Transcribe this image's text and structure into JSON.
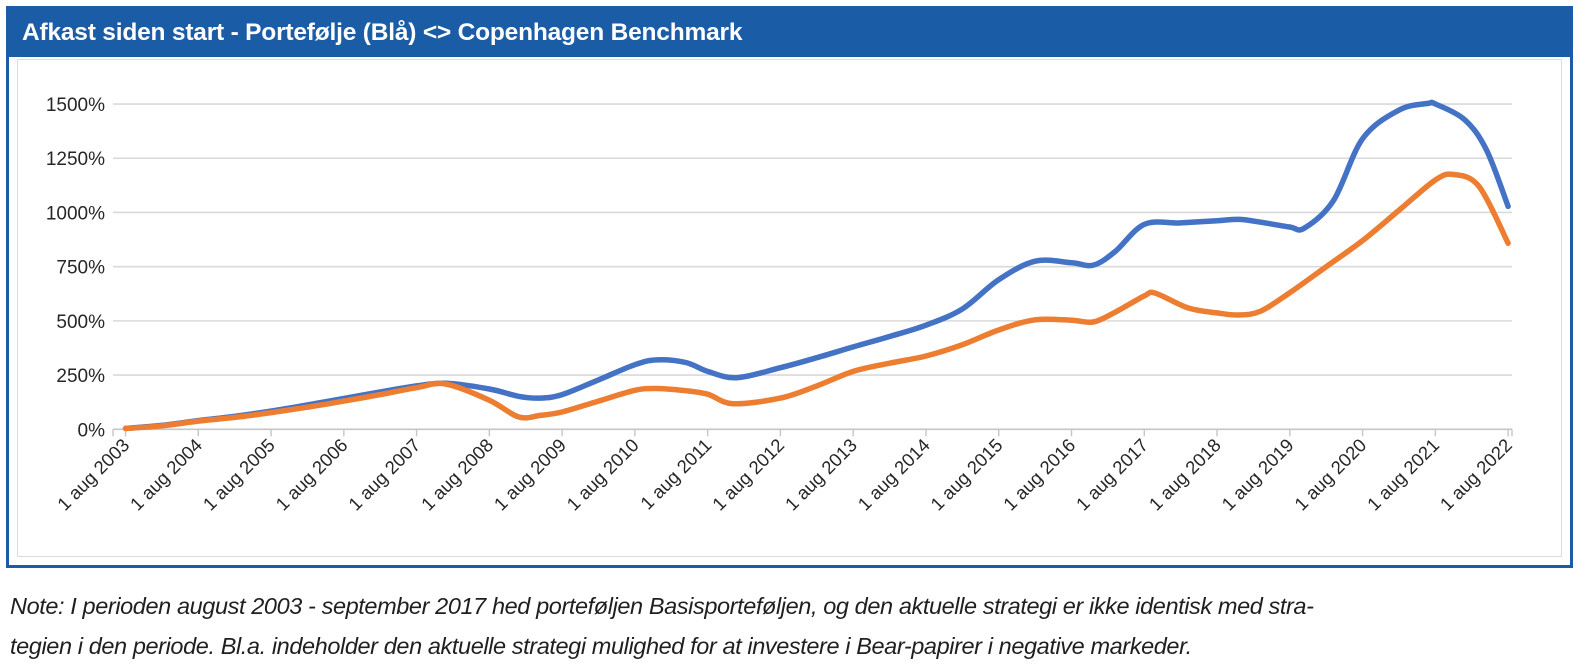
{
  "colors": {
    "brand_blue": "#1B5CA7",
    "series_portfolio": "#4472C4",
    "series_benchmark": "#ED7D31",
    "gridline": "#D9D9D9",
    "axis": "#C6C6C6",
    "text": "#262626"
  },
  "note": {
    "line1": "Note: I perioden august 2003 - september 2017 hed porteføljen Basisporteføljen, og den aktuelle strategi er ikke identisk med stra-",
    "line2": "tegien i den periode. Bl.a. indeholder den aktuelle strategi mulighed for at investere i Bear-papirer i negative markeder."
  },
  "chart_data": {
    "type": "line",
    "title": "Afkast siden start - Portefølje (Blå) <> Copenhagen Benchmark",
    "xlabel": "",
    "ylabel": "",
    "ylim": [
      0,
      1500
    ],
    "grid": true,
    "legend_position": "none",
    "smoothed": true,
    "x_unit": "years since 1 aug 2003",
    "categories": [
      "1 aug 2003",
      "1 aug 2004",
      "1 aug 2005",
      "1 aug 2006",
      "1 aug 2007",
      "1 aug 2008",
      "1 aug 2009",
      "1 aug 2010",
      "1 aug 2011",
      "1 aug 2012",
      "1 aug 2013",
      "1 aug 2014",
      "1 aug 2015",
      "1 aug 2016",
      "1 aug 2017",
      "1 aug 2018",
      "1 aug 2019",
      "1 aug 2020",
      "1 aug 2021",
      "1 aug 2022"
    ],
    "yticks": [
      {
        "value": 0,
        "label": "0%"
      },
      {
        "value": 250,
        "label": "250%"
      },
      {
        "value": 500,
        "label": "500%"
      },
      {
        "value": 750,
        "label": "750%"
      },
      {
        "value": 1000,
        "label": "1000%"
      },
      {
        "value": 1250,
        "label": "1250%"
      },
      {
        "value": 1500,
        "label": "1500%"
      }
    ],
    "series": [
      {
        "name": "Portefølje",
        "color": "#4472C4",
        "annual_values_pct": [
          0,
          40,
          84,
          142,
          200,
          186,
          160,
          298,
          267,
          284,
          380,
          480,
          690,
          768,
          945,
          962,
          933,
          1340,
          1500,
          1028
        ],
        "points": [
          [
            0,
            4
          ],
          [
            0.5,
            18
          ],
          [
            1,
            40
          ],
          [
            1.5,
            60
          ],
          [
            2,
            84
          ],
          [
            2.5,
            112
          ],
          [
            3,
            142
          ],
          [
            3.5,
            172
          ],
          [
            4,
            200
          ],
          [
            4.4,
            212
          ],
          [
            5,
            186
          ],
          [
            5.4,
            152
          ],
          [
            5.7,
            144
          ],
          [
            6,
            160
          ],
          [
            6.5,
            228
          ],
          [
            7,
            298
          ],
          [
            7.3,
            320
          ],
          [
            7.7,
            308
          ],
          [
            8,
            267
          ],
          [
            8.4,
            238
          ],
          [
            9,
            284
          ],
          [
            9.5,
            330
          ],
          [
            10,
            380
          ],
          [
            10.5,
            428
          ],
          [
            11,
            480
          ],
          [
            11.5,
            555
          ],
          [
            12,
            690
          ],
          [
            12.5,
            775
          ],
          [
            13,
            768
          ],
          [
            13.3,
            757
          ],
          [
            13.6,
            820
          ],
          [
            14,
            945
          ],
          [
            14.5,
            952
          ],
          [
            15,
            962
          ],
          [
            15.3,
            968
          ],
          [
            15.6,
            955
          ],
          [
            16,
            933
          ],
          [
            16.2,
            928
          ],
          [
            16.6,
            1055
          ],
          [
            17,
            1340
          ],
          [
            17.5,
            1472
          ],
          [
            17.9,
            1503
          ],
          [
            18,
            1500
          ],
          [
            18.4,
            1428
          ],
          [
            18.7,
            1290
          ],
          [
            19,
            1028
          ]
        ]
      },
      {
        "name": "Copenhagen Benchmark",
        "color": "#ED7D31",
        "annual_values_pct": [
          0,
          38,
          77,
          130,
          192,
          134,
          80,
          180,
          162,
          144,
          267,
          338,
          458,
          503,
          615,
          537,
          630,
          870,
          1150,
          858
        ],
        "points": [
          [
            0,
            4
          ],
          [
            0.5,
            16
          ],
          [
            1,
            38
          ],
          [
            1.5,
            55
          ],
          [
            2,
            77
          ],
          [
            2.5,
            102
          ],
          [
            3,
            130
          ],
          [
            3.5,
            160
          ],
          [
            4,
            192
          ],
          [
            4.4,
            209
          ],
          [
            5,
            134
          ],
          [
            5.4,
            57
          ],
          [
            5.7,
            64
          ],
          [
            6,
            80
          ],
          [
            6.5,
            130
          ],
          [
            7,
            180
          ],
          [
            7.3,
            188
          ],
          [
            7.7,
            178
          ],
          [
            8,
            162
          ],
          [
            8.35,
            118
          ],
          [
            9,
            144
          ],
          [
            9.5,
            200
          ],
          [
            10,
            267
          ],
          [
            10.5,
            305
          ],
          [
            11,
            338
          ],
          [
            11.5,
            390
          ],
          [
            12,
            458
          ],
          [
            12.5,
            505
          ],
          [
            13,
            503
          ],
          [
            13.3,
            495
          ],
          [
            13.6,
            540
          ],
          [
            14,
            615
          ],
          [
            14.15,
            628
          ],
          [
            14.6,
            560
          ],
          [
            15,
            537
          ],
          [
            15.3,
            527
          ],
          [
            15.6,
            545
          ],
          [
            16,
            630
          ],
          [
            16.5,
            750
          ],
          [
            17,
            870
          ],
          [
            17.5,
            1010
          ],
          [
            18,
            1150
          ],
          [
            18.25,
            1175
          ],
          [
            18.6,
            1120
          ],
          [
            19,
            858
          ]
        ]
      }
    ]
  }
}
